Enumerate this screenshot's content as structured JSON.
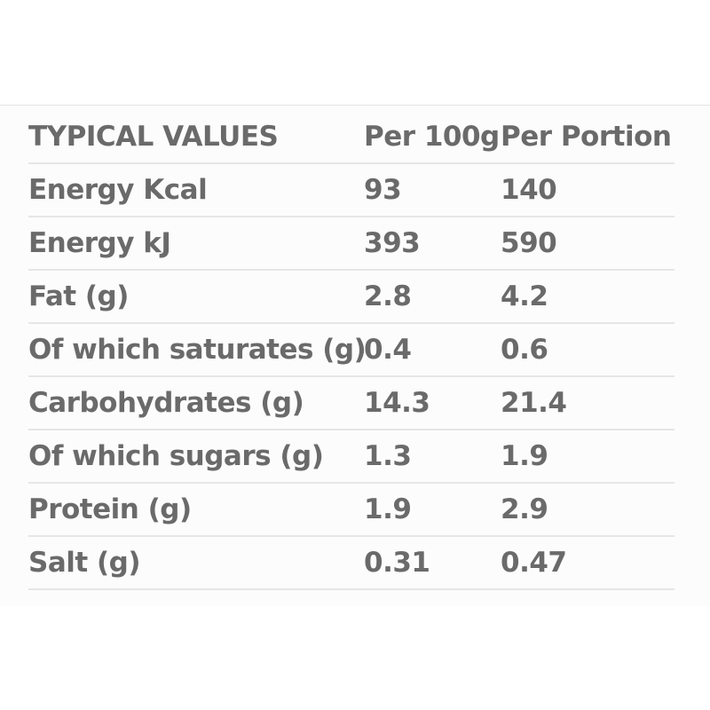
{
  "table": {
    "headers": [
      "TYPICAL VALUES",
      "Per 100g",
      "Per Portion"
    ],
    "rows": [
      {
        "label": "Energy Kcal",
        "per_100g": "93",
        "per_portion": "140"
      },
      {
        "label": "Energy kJ",
        "per_100g": "393",
        "per_portion": "590"
      },
      {
        "label": "Fat (g)",
        "per_100g": "2.8",
        "per_portion": "4.2"
      },
      {
        "label": "Of which saturates (g)",
        "per_100g": "0.4",
        "per_portion": "0.6"
      },
      {
        "label": "Carbohydrates (g)",
        "per_100g": "14.3",
        "per_portion": "21.4"
      },
      {
        "label": "Of which sugars (g)",
        "per_100g": "1.3",
        "per_portion": "1.9"
      },
      {
        "label": "Protein (g)",
        "per_100g": "1.9",
        "per_portion": "2.9"
      },
      {
        "label": "Salt (g)",
        "per_100g": "0.31",
        "per_portion": "0.47"
      }
    ]
  }
}
